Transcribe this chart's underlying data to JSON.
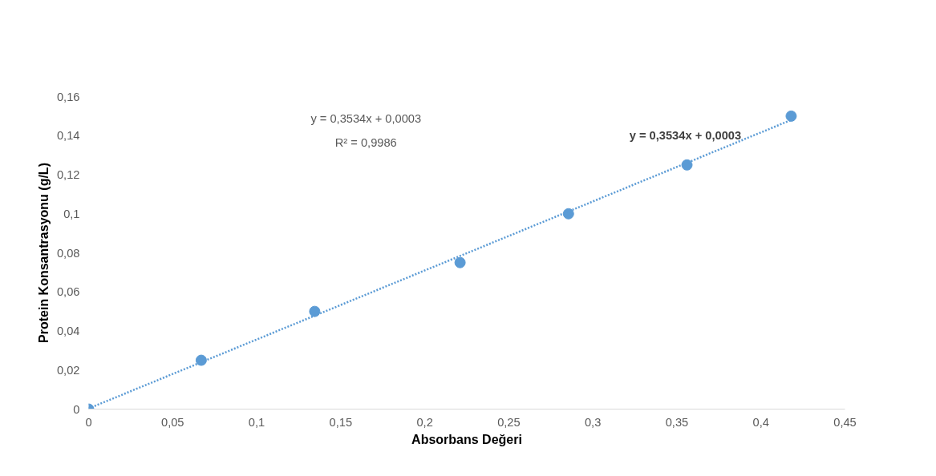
{
  "chart_data": {
    "type": "scatter",
    "xlabel": "Absorbans Değeri",
    "ylabel": "Protein Konsantrasyonu (g/L)",
    "x": [
      0,
      0.067,
      0.1345,
      0.221,
      0.2855,
      0.356,
      0.418
    ],
    "series": [
      {
        "color": "#5b9bd5",
        "marker": "circle",
        "values": [
          0,
          0.025,
          0.05,
          0.075,
          0.1,
          0.125,
          0.15
        ]
      },
      {
        "type": "line",
        "color": "#5b9bd5",
        "line_style": "dotted",
        "marker": "none",
        "x": [
          0,
          0.418
        ],
        "values": [
          0.0003,
          0.148
        ]
      }
    ],
    "xlim": [
      0,
      0.45
    ],
    "ylim": [
      0,
      0.16
    ],
    "xticks": [
      0,
      {
        "value": 0.05,
        "label": "0,05"
      },
      {
        "value": 0.1,
        "label": "0,1"
      },
      {
        "value": 0.15,
        "label": "0,15"
      },
      {
        "value": 0.2,
        "label": "0,2"
      },
      {
        "value": 0.25,
        "label": "0,25"
      },
      {
        "value": 0.3,
        "label": "0,3"
      },
      {
        "value": 0.35,
        "label": "0,35"
      },
      {
        "value": 0.4,
        "label": "0,4"
      },
      {
        "value": 0.45,
        "label": "0,45"
      }
    ],
    "yticks": [
      0,
      {
        "value": 0.02,
        "label": "0,02"
      },
      {
        "value": 0.04,
        "label": "0,04"
      },
      {
        "value": 0.06,
        "label": "0,06"
      },
      {
        "value": 0.08,
        "label": "0,08"
      },
      {
        "value": 0.1,
        "label": "0,1"
      },
      {
        "value": 0.12,
        "label": "0,12"
      },
      {
        "value": 0.14,
        "label": "0,14"
      },
      {
        "value": 0.16,
        "label": "0,16"
      }
    ],
    "grid": false,
    "annotations": [
      "y = 0,3534x + 0,0003",
      "R² = 0,9986",
      "y = 0,3534x + 0,0003"
    ]
  }
}
